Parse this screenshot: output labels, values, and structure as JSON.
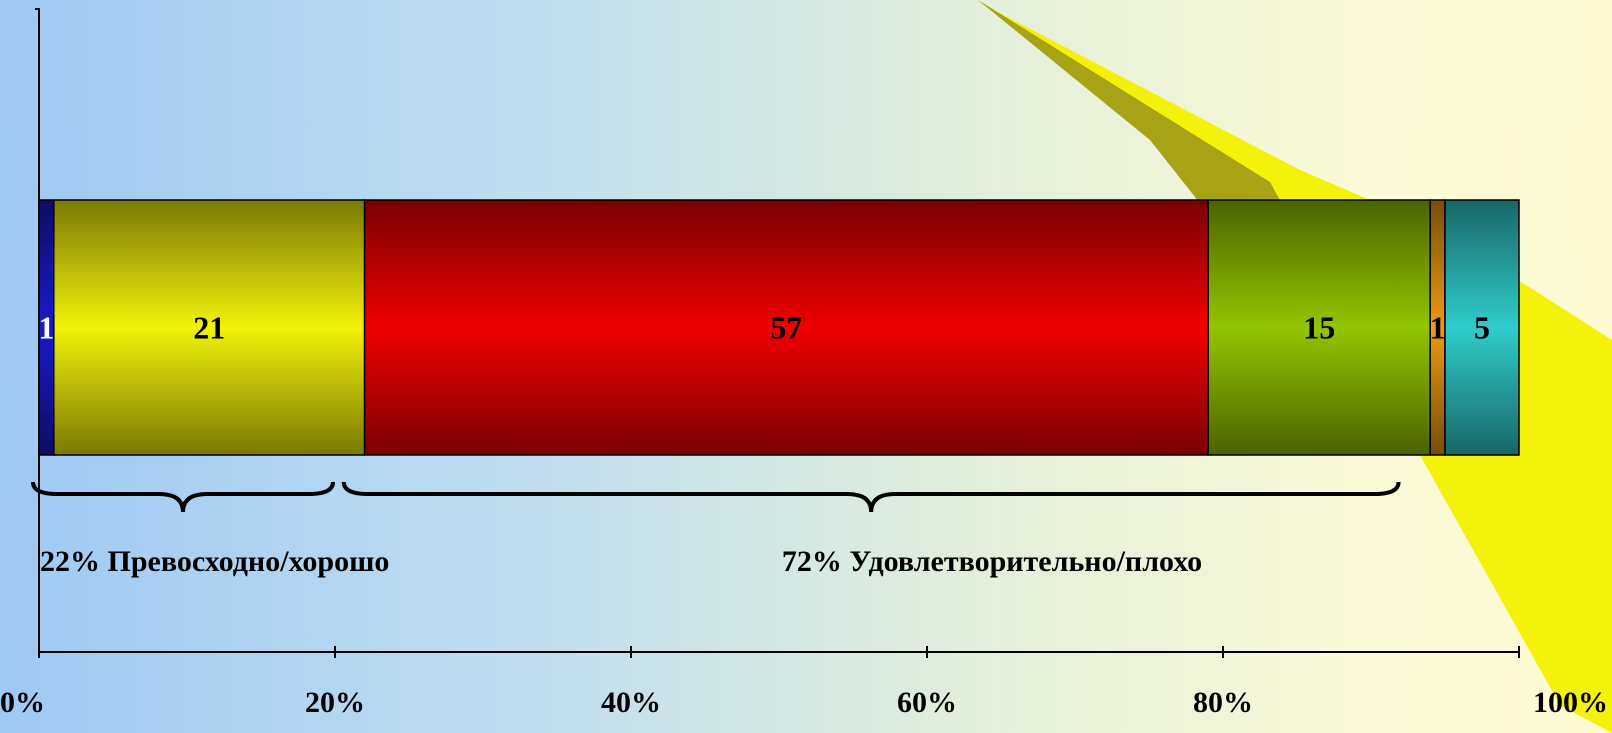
{
  "chart_data": {
    "type": "bar",
    "orientation": "horizontal",
    "stacked": true,
    "title": "",
    "xlabel": "",
    "ylabel": "",
    "xlim": [
      0,
      100
    ],
    "x_ticks": [
      "0%",
      "20%",
      "40%",
      "60%",
      "80%",
      "100%"
    ],
    "x_tick_values": [
      0,
      20,
      40,
      60,
      80,
      100
    ],
    "grid": false,
    "legend": "none",
    "series": [
      {
        "label": "1",
        "value": 1,
        "color": "#1a1acc"
      },
      {
        "label": "21",
        "value": 21,
        "color": "#f2f20a"
      },
      {
        "label": "57",
        "value": 57,
        "color": "#f00000"
      },
      {
        "label": "15",
        "value": 15,
        "color": "#93c500"
      },
      {
        "label": "1",
        "value": 1,
        "color": "#f09a10"
      },
      {
        "label": "5",
        "value": 5,
        "color": "#30cccc"
      }
    ],
    "annotations": [
      {
        "text": "22% Превосходно/хорошо",
        "from": 0,
        "to": 20
      },
      {
        "text": "72% Удовлетворительно/плохо",
        "from": 21,
        "to": 92
      }
    ]
  }
}
